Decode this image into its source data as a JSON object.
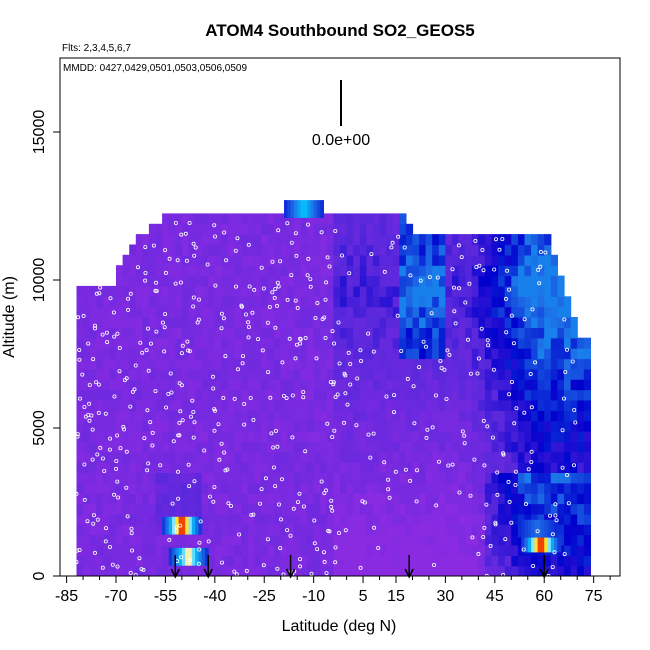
{
  "chart_data": {
    "type": "heatmap",
    "title": "ATOM4 Southbound SO2_GEOS5",
    "subtitle_flights": "Flts: 2,3,4,5,6,7",
    "subtitle_dates": "MMDD: 0427,0429,0501,0503,0506,0509",
    "xlabel": "Latitude (deg N)",
    "ylabel": "Altitude (m)",
    "xlim": [
      -87,
      83
    ],
    "ylim": [
      0,
      17500
    ],
    "x_ticks": [
      -85,
      -70,
      -55,
      -40,
      -25,
      -10,
      5,
      15,
      30,
      45,
      60,
      75
    ],
    "y_ticks": [
      0,
      5000,
      10000,
      15000
    ],
    "scale_label": "0.0e+00",
    "arrow_latitudes": [
      -52,
      -42,
      -17,
      19,
      60
    ],
    "hotspots": [
      {
        "lat": -50,
        "alt": 1700,
        "intensity": 1.0
      },
      {
        "lat": -48,
        "alt": 650,
        "intensity": 0.9
      },
      {
        "lat": 59,
        "alt": 1100,
        "intensity": 1.0
      },
      {
        "lat": 58,
        "alt": 1600,
        "intensity": 0.7
      },
      {
        "lat": -13,
        "alt": 12400,
        "intensity": 0.8
      }
    ],
    "grid": false,
    "legend": "none"
  }
}
